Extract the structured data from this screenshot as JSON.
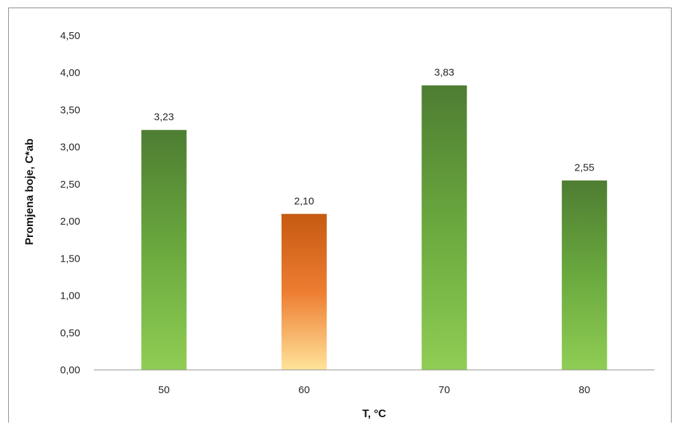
{
  "chart_data": {
    "type": "bar",
    "categories": [
      "50",
      "60",
      "70",
      "80"
    ],
    "values": [
      3.23,
      2.1,
      3.83,
      2.55
    ],
    "data_labels": [
      "3,23",
      "2,10",
      "3,83",
      "2,55"
    ],
    "ytick_labels": [
      "0,00",
      "0,50",
      "1,00",
      "1,50",
      "2,00",
      "2,50",
      "3,00",
      "3,50",
      "4,00",
      "4,50"
    ],
    "yticks": [
      0,
      0.5,
      1,
      1.5,
      2,
      2.5,
      3,
      3.5,
      4,
      4.5
    ],
    "xlabel": "T, °C",
    "ylabel": "Promjena boje, C*ab",
    "ylim": [
      0,
      4.5
    ],
    "grid": false,
    "legend": "none",
    "bar_colors": [
      {
        "top": "#4e7d32",
        "bottom": "#8fcd54"
      },
      {
        "top": "#c55a11",
        "bottom": "#ffe39a"
      },
      {
        "top": "#4e7d32",
        "bottom": "#8fcd54"
      },
      {
        "top": "#4e7d32",
        "bottom": "#8fcd54"
      }
    ]
  }
}
